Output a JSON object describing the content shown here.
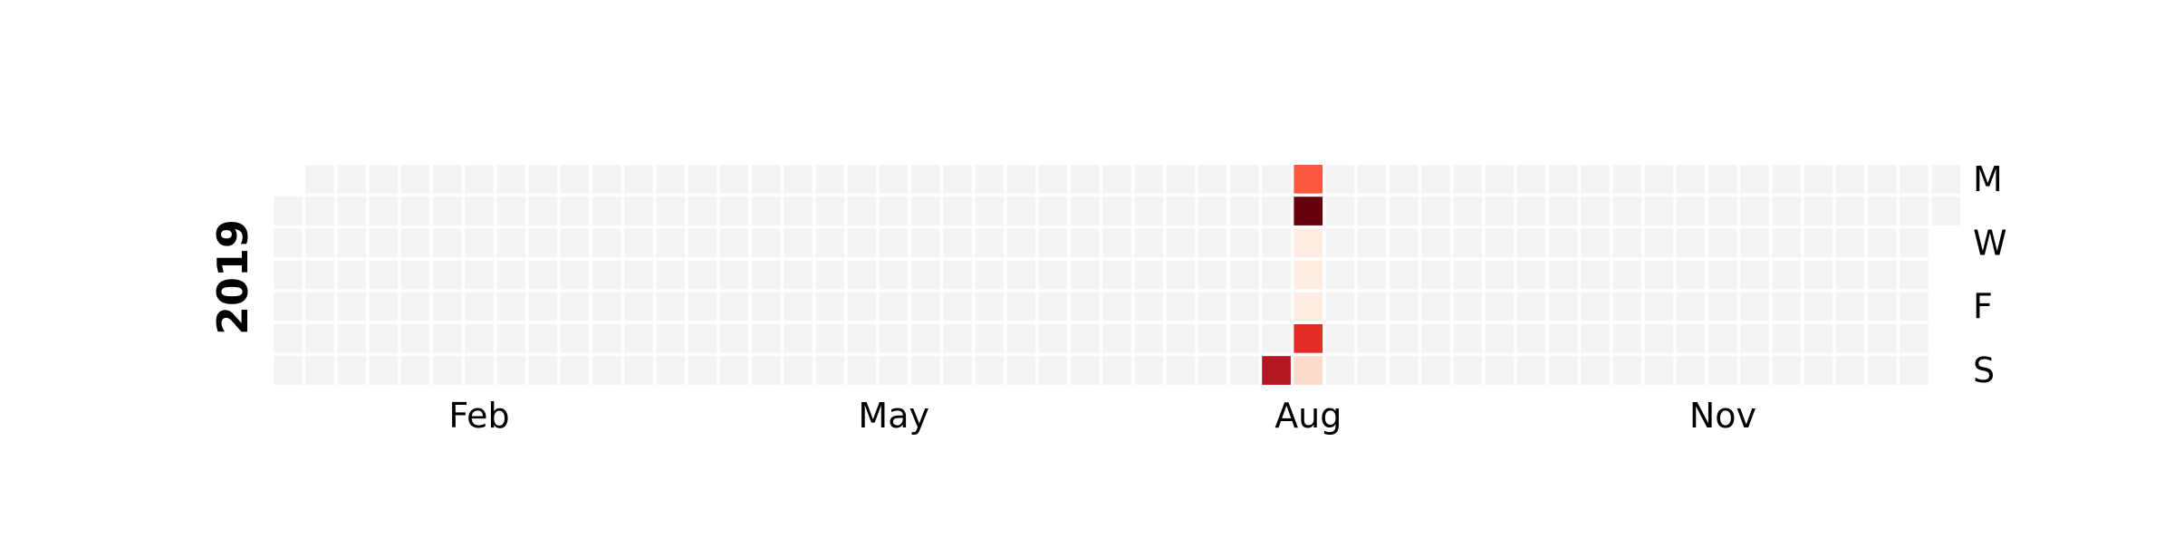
{
  "chart_data": {
    "type": "heatmap",
    "title": "",
    "year_label": "2019",
    "x_tick_labels": [
      "Feb",
      "May",
      "Aug",
      "Nov"
    ],
    "y_tick_labels": [
      "M",
      "W",
      "F",
      "S"
    ],
    "rows": [
      "Mon",
      "Tue",
      "Wed",
      "Thu",
      "Fri",
      "Sat",
      "Sun"
    ],
    "year_start": "2019-01-01",
    "year_end": "2019-12-31",
    "colormap": "Reds",
    "empty_color": "#f4f4f4",
    "values": [
      {
        "date": "2019-08-11",
        "level": 0.85
      },
      {
        "date": "2019-08-12",
        "level": 0.55
      },
      {
        "date": "2019-08-13",
        "level": 1.0
      },
      {
        "date": "2019-08-14",
        "level": 0.04
      },
      {
        "date": "2019-08-15",
        "level": 0.04
      },
      {
        "date": "2019-08-16",
        "level": 0.04
      },
      {
        "date": "2019-08-17",
        "level": 0.7
      },
      {
        "date": "2019-08-18",
        "level": 0.12
      }
    ],
    "legend": "none",
    "grid": false
  }
}
